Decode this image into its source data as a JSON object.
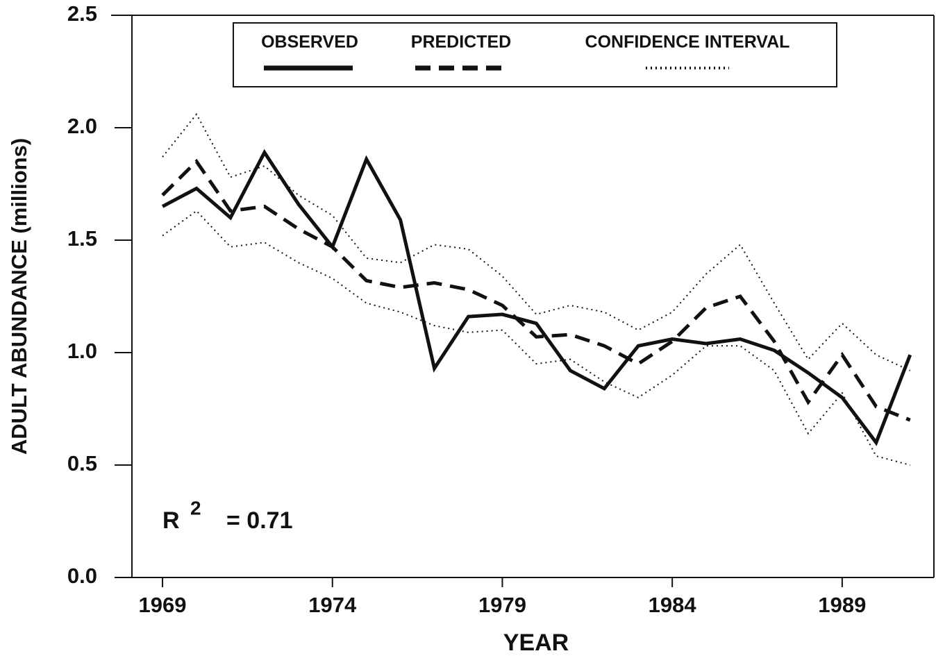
{
  "chart_data": {
    "type": "line",
    "x_label": "YEAR",
    "y_label": "ADULT ABUNDANCE (millions)",
    "x": [
      1969,
      1970,
      1971,
      1972,
      1973,
      1974,
      1975,
      1976,
      1977,
      1978,
      1979,
      1980,
      1981,
      1982,
      1983,
      1984,
      1985,
      1986,
      1987,
      1988,
      1989,
      1990,
      1991
    ],
    "series": [
      {
        "name": "OBSERVED",
        "color": "#111111",
        "style": "solid",
        "values": [
          1.65,
          1.73,
          1.6,
          1.89,
          1.66,
          1.47,
          1.86,
          1.59,
          0.93,
          1.16,
          1.17,
          1.13,
          0.92,
          0.84,
          1.03,
          1.06,
          1.04,
          1.06,
          1.01,
          0.91,
          0.8,
          0.6,
          0.99
        ]
      },
      {
        "name": "PREDICTED",
        "color": "#111111",
        "style": "dashed",
        "values": [
          1.7,
          1.85,
          1.63,
          1.65,
          1.55,
          1.47,
          1.32,
          1.29,
          1.31,
          1.28,
          1.21,
          1.07,
          1.08,
          1.03,
          0.95,
          1.05,
          1.2,
          1.25,
          1.05,
          0.78,
          0.99,
          0.76,
          0.7
        ]
      },
      {
        "name": "CONFIDENCE INTERVAL",
        "color": "#111111",
        "style": "dotted",
        "upper": [
          1.87,
          2.06,
          1.78,
          1.83,
          1.7,
          1.61,
          1.42,
          1.4,
          1.48,
          1.46,
          1.34,
          1.17,
          1.21,
          1.18,
          1.1,
          1.18,
          1.35,
          1.48,
          1.22,
          0.97,
          1.13,
          0.99,
          0.92
        ],
        "lower": [
          1.52,
          1.63,
          1.47,
          1.49,
          1.4,
          1.33,
          1.22,
          1.18,
          1.12,
          1.09,
          1.1,
          0.95,
          0.97,
          0.87,
          0.8,
          0.9,
          1.03,
          1.03,
          0.92,
          0.64,
          0.82,
          0.54,
          0.5
        ]
      }
    ],
    "xlim": [
      1968.1,
      1991.7
    ],
    "ylim": [
      0,
      2.5
    ],
    "xticks": [
      1969,
      1974,
      1979,
      1984,
      1989
    ],
    "yticks": [
      {
        "value": 0,
        "label": "0.0"
      },
      0.5,
      {
        "value": 1,
        "label": "1.0"
      },
      1.5,
      {
        "value": 2,
        "label": "2.0"
      },
      2.5
    ],
    "annotation": {
      "text": "R",
      "superscript": "2",
      "rest": "= 0.71"
    },
    "legend": "top"
  }
}
